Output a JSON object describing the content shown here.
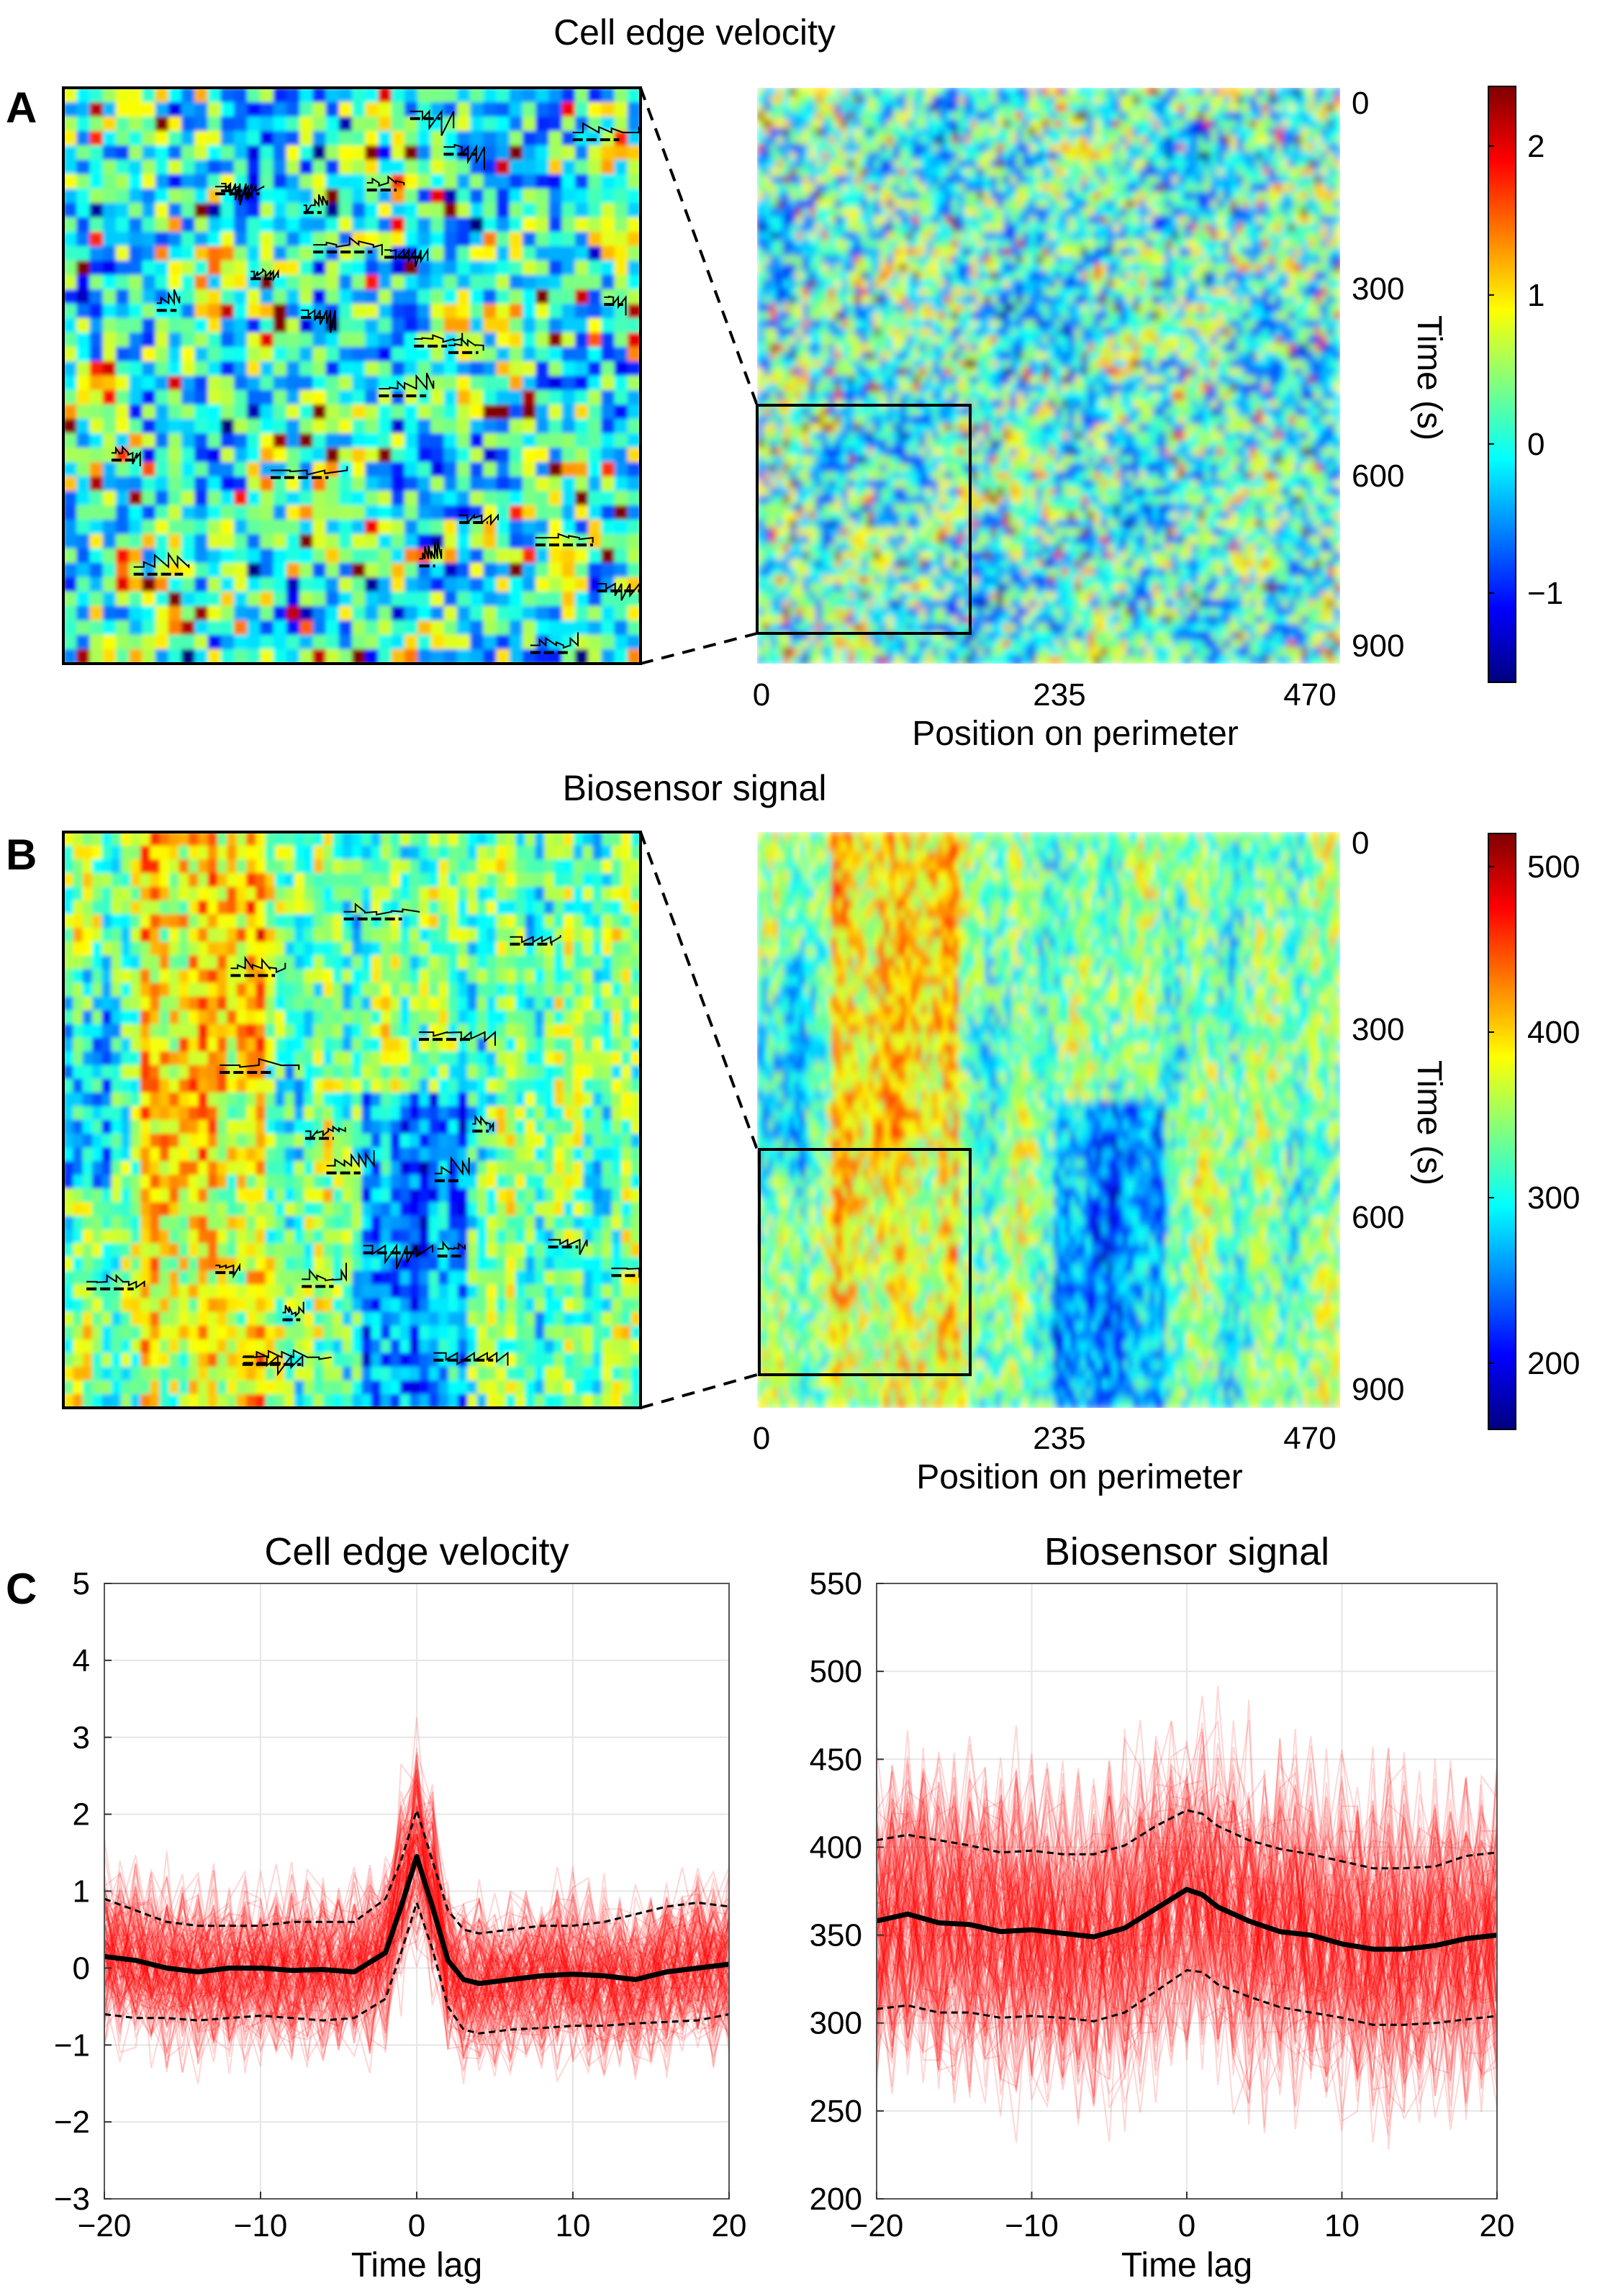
{
  "panels": {
    "a": {
      "letter": "A",
      "title": "Cell edge velocity"
    },
    "b": {
      "letter": "B",
      "title": "Biosensor signal"
    },
    "c": {
      "letter": "C"
    }
  },
  "heatmap_axes": {
    "xlabel": "Position on perimeter",
    "ylabel": "Time (s)",
    "xticks": [
      0,
      235,
      470
    ],
    "yticks": [
      0,
      300,
      600,
      900
    ]
  },
  "colors": {
    "jet": [
      "#00007f",
      "#0000ff",
      "#007fff",
      "#00ffff",
      "#7fff7f",
      "#ffff00",
      "#ff7f00",
      "#ff0000",
      "#7f0000"
    ],
    "trace": "#ff0000",
    "mean_line": "#000000",
    "grid": "#e6e6e6"
  },
  "chart_data": [
    {
      "type": "heatmap",
      "panel": "A",
      "title": "Cell edge velocity",
      "xlabel": "Position on perimeter",
      "ylabel": "Time (s)",
      "xlim": [
        0,
        470
      ],
      "ylim": [
        0,
        900
      ],
      "colorbar": {
        "range": [
          -1.6,
          2.4
        ],
        "ticks": [
          -1,
          0,
          1,
          2
        ],
        "tick_labels": [
          "−1",
          "0",
          "1",
          "2"
        ]
      },
      "zoom_box": {
        "x": [
          0,
          170
        ],
        "t": [
          510,
          900
        ]
      },
      "colormap": "jet"
    },
    {
      "type": "heatmap",
      "panel": "B",
      "title": "Biosensor signal",
      "xlabel": "Position on perimeter",
      "ylabel": "Time (s)",
      "xlim": [
        0,
        470
      ],
      "ylim": [
        0,
        900
      ],
      "colorbar": {
        "range": [
          160,
          520
        ],
        "ticks": [
          200,
          300,
          400,
          500
        ],
        "tick_labels": [
          "200",
          "300",
          "400",
          "500"
        ]
      },
      "zoom_box": {
        "x": [
          0,
          170
        ],
        "t": [
          510,
          900
        ]
      },
      "colormap": "jet"
    },
    {
      "type": "line",
      "panel": "C",
      "title": "Cell edge velocity",
      "xlabel": "Time lag",
      "ylabel": "",
      "xlim": [
        -20,
        20
      ],
      "ylim": [
        -3,
        5
      ],
      "xticks": [
        -20,
        -10,
        0,
        10,
        20
      ],
      "xtick_labels": [
        "−20",
        "−10",
        "0",
        "10",
        "20"
      ],
      "yticks": [
        -3,
        -2,
        -1,
        0,
        1,
        2,
        3,
        4,
        5
      ],
      "ytick_labels": [
        "−3",
        "−2",
        "−1",
        "0",
        "1",
        "2",
        "3",
        "4",
        "5"
      ],
      "grid": true,
      "x": [
        -20,
        -18,
        -16,
        -14,
        -12,
        -10,
        -8,
        -6,
        -4,
        -2,
        -1,
        0,
        1,
        2,
        3,
        4,
        6,
        8,
        10,
        12,
        14,
        16,
        18,
        20
      ],
      "series": [
        {
          "role": "mean",
          "values": [
            0.15,
            0.1,
            0.0,
            -0.05,
            0.0,
            0.0,
            -0.03,
            -0.02,
            -0.05,
            0.2,
            0.8,
            1.45,
            0.8,
            0.1,
            -0.15,
            -0.2,
            -0.15,
            -0.1,
            -0.08,
            -0.1,
            -0.15,
            -0.05,
            0.0,
            0.05
          ]
        },
        {
          "role": "upper-band",
          "values": [
            0.9,
            0.75,
            0.6,
            0.55,
            0.55,
            0.55,
            0.6,
            0.6,
            0.6,
            0.9,
            1.4,
            2.05,
            1.4,
            0.75,
            0.5,
            0.45,
            0.5,
            0.55,
            0.55,
            0.6,
            0.7,
            0.8,
            0.85,
            0.8
          ]
        },
        {
          "role": "lower-band",
          "values": [
            -0.6,
            -0.65,
            -0.65,
            -0.68,
            -0.65,
            -0.62,
            -0.65,
            -0.68,
            -0.65,
            -0.4,
            0.2,
            0.85,
            0.25,
            -0.5,
            -0.8,
            -0.85,
            -0.8,
            -0.78,
            -0.75,
            -0.75,
            -0.72,
            -0.7,
            -0.68,
            -0.6
          ]
        }
      ],
      "traces": {
        "count": 150,
        "spread": 0.75,
        "peak_boost": 1.3
      }
    },
    {
      "type": "line",
      "panel": "C",
      "title": "Biosensor signal",
      "xlabel": "Time lag",
      "ylabel": "",
      "xlim": [
        -20,
        20
      ],
      "ylim": [
        200,
        550
      ],
      "xticks": [
        -20,
        -10,
        0,
        10,
        20
      ],
      "xtick_labels": [
        "−20",
        "−10",
        "0",
        "10",
        "20"
      ],
      "yticks": [
        200,
        250,
        300,
        350,
        400,
        450,
        500,
        550
      ],
      "ytick_labels": [
        "200",
        "250",
        "300",
        "350",
        "400",
        "450",
        "500",
        "550"
      ],
      "grid": true,
      "x": [
        -20,
        -18,
        -16,
        -14,
        -12,
        -10,
        -8,
        -6,
        -4,
        -2,
        0,
        1,
        2,
        4,
        6,
        8,
        10,
        12,
        14,
        16,
        18,
        20
      ],
      "series": [
        {
          "role": "mean",
          "values": [
            358,
            362,
            357,
            356,
            352,
            353,
            351,
            349,
            354,
            365,
            376,
            373,
            366,
            358,
            352,
            350,
            345,
            342,
            342,
            344,
            348,
            350
          ]
        },
        {
          "role": "upper-band",
          "values": [
            404,
            407,
            404,
            401,
            397,
            398,
            396,
            396,
            401,
            412,
            421,
            419,
            412,
            404,
            399,
            396,
            392,
            388,
            388,
            389,
            395,
            397
          ]
        },
        {
          "role": "lower-band",
          "values": [
            308,
            310,
            306,
            306,
            303,
            304,
            303,
            301,
            306,
            318,
            330,
            329,
            322,
            315,
            309,
            306,
            303,
            299,
            299,
            300,
            302,
            304
          ]
        }
      ],
      "traces": {
        "count": 150,
        "spread": 62,
        "peak_boost": 0
      }
    }
  ]
}
